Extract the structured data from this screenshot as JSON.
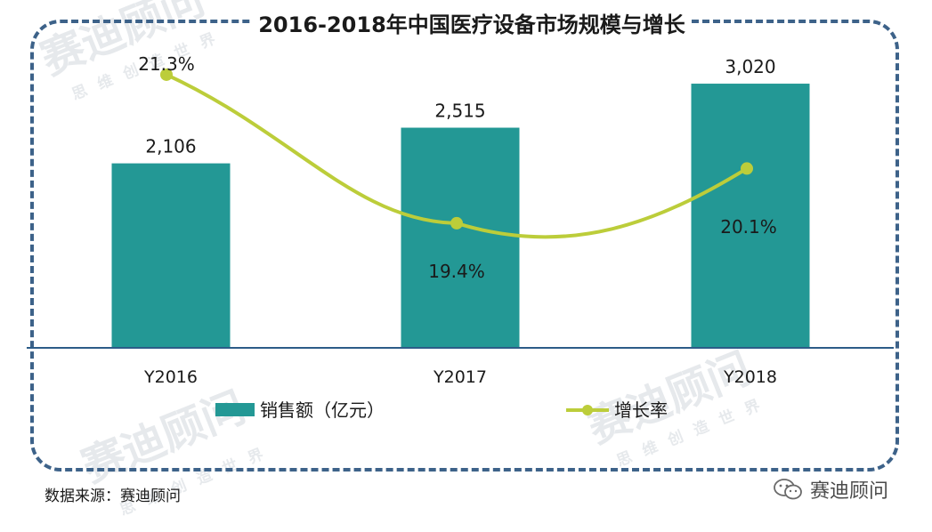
{
  "watermark": {
    "brand": "赛迪顾问",
    "slogan": "思维创造世界"
  },
  "footer": {
    "source": "数据来源：赛迪顾问",
    "brand": "赛迪顾问"
  },
  "colors": {
    "bar": "#239895",
    "line": "#bccd3a",
    "axis": "#2d5c88",
    "frame": "#3d6289"
  },
  "chart_data": {
    "type": "bar",
    "title": "2016-2018年中国医疗设备市场规模与增长",
    "categories": [
      "Y2016",
      "Y2017",
      "Y2018"
    ],
    "series": [
      {
        "name": "销售额（亿元）",
        "type": "bar",
        "values": [
          2106,
          2515,
          3020
        ],
        "labels": [
          "2,106",
          "2,515",
          "3,020"
        ]
      },
      {
        "name": "增长率",
        "type": "line",
        "values": [
          21.3,
          19.4,
          20.1
        ],
        "labels": [
          "21.3%",
          "19.4%",
          "20.1%"
        ]
      }
    ],
    "ylim": [
      0,
      3500
    ],
    "y2lim": [
      18.5,
      21.8
    ],
    "legend": "bottom-center",
    "grid": false
  }
}
